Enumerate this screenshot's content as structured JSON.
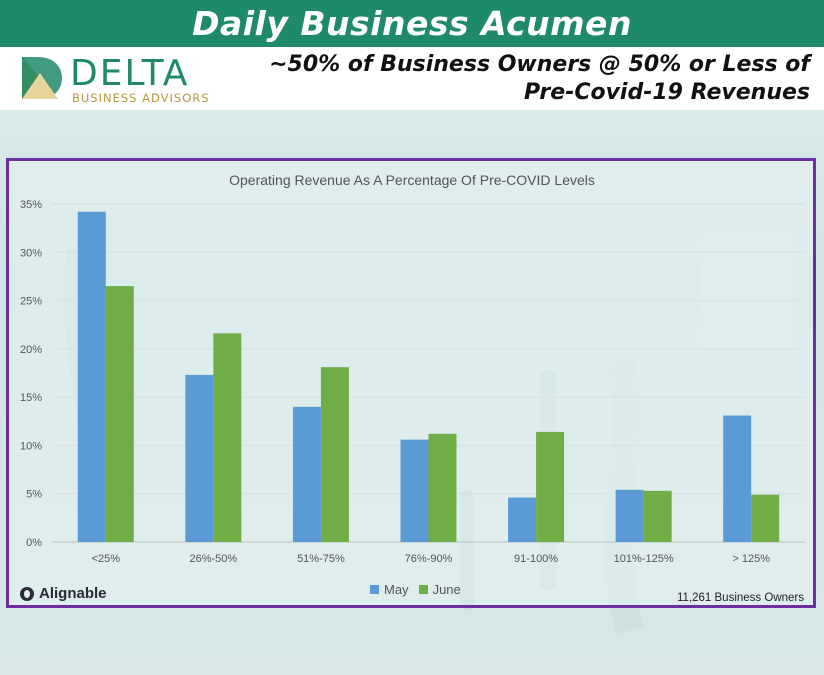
{
  "banner": {
    "title": "Daily Business Acumen"
  },
  "brand": {
    "name": "DELTA",
    "tagline": "BUSINESS ADVISORS",
    "color_primary": "#1f8a6b",
    "color_gold": "#b9973f"
  },
  "headline": {
    "line1": "~50% of Business Owners @ 50% or Less of",
    "line2": "Pre-Covid-19 Revenues"
  },
  "source": {
    "name": "Alignable",
    "respondents": "11,261 Business Owners"
  },
  "chart_data": {
    "type": "bar",
    "title": "Operating Revenue As A Percentage Of Pre-COVID Levels",
    "categories": [
      "<25%",
      "26%-50%",
      "51%-75%",
      "76%-90%",
      "91-100%",
      "101%-125%",
      "> 125%"
    ],
    "series": [
      {
        "name": "May",
        "color": "#5b9bd5",
        "values": [
          34.2,
          17.3,
          14.0,
          10.6,
          4.6,
          5.4,
          13.1
        ]
      },
      {
        "name": "June",
        "color": "#70ad47",
        "values": [
          26.5,
          21.6,
          18.1,
          11.2,
          11.4,
          5.3,
          4.9
        ]
      }
    ],
    "y_ticks": [
      "0%",
      "5%",
      "10%",
      "15%",
      "20%",
      "25%",
      "30%",
      "35%"
    ],
    "ylim": [
      0,
      35
    ],
    "xlabel": "",
    "ylabel": "",
    "grid": true,
    "legend_position": "bottom"
  }
}
